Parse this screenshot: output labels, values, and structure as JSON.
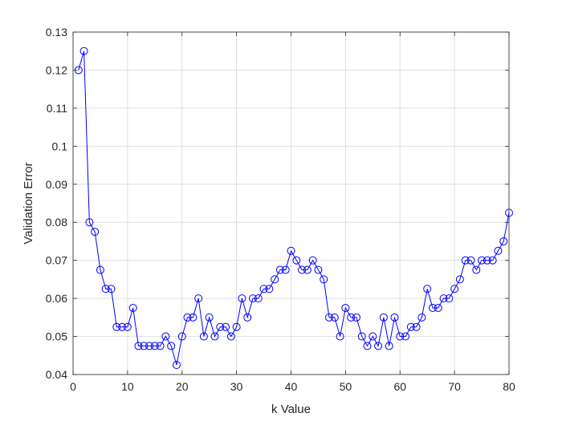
{
  "chart_data": {
    "type": "line",
    "xlabel": "k Value",
    "ylabel": "Validation Error",
    "xlim": [
      0,
      80
    ],
    "ylim": [
      0.04,
      0.13
    ],
    "xticks": [
      0,
      10,
      20,
      30,
      40,
      50,
      60,
      70,
      80
    ],
    "yticks": [
      0.04,
      0.05,
      0.06,
      0.07,
      0.08,
      0.09,
      0.1,
      0.11,
      0.12,
      0.13
    ],
    "xtick_labels": [
      "0",
      "10",
      "20",
      "30",
      "40",
      "50",
      "60",
      "70",
      "80"
    ],
    "ytick_labels": [
      "0.04",
      "0.05",
      "0.06",
      "0.07",
      "0.08",
      "0.09",
      "0.1",
      "0.11",
      "0.12",
      "0.13"
    ],
    "grid": true,
    "series": [
      {
        "color": "#0000ff",
        "marker": "circle",
        "x": [
          1,
          2,
          3,
          4,
          5,
          6,
          7,
          8,
          9,
          10,
          11,
          12,
          13,
          14,
          15,
          16,
          17,
          18,
          19,
          20,
          21,
          22,
          23,
          24,
          25,
          26,
          27,
          28,
          29,
          30,
          31,
          32,
          33,
          34,
          35,
          36,
          37,
          38,
          39,
          40,
          41,
          42,
          43,
          44,
          45,
          46,
          47,
          48,
          49,
          50,
          51,
          52,
          53,
          54,
          55,
          56,
          57,
          58,
          59,
          60,
          61,
          62,
          63,
          64,
          65,
          66,
          67,
          68,
          69,
          70,
          71,
          72,
          73,
          74,
          75,
          76,
          77,
          78,
          79,
          80
        ],
        "y": [
          0.12,
          0.125,
          0.08,
          0.0775,
          0.0675,
          0.0625,
          0.0625,
          0.0525,
          0.0525,
          0.0525,
          0.0575,
          0.0475,
          0.0475,
          0.0475,
          0.0475,
          0.0475,
          0.05,
          0.0475,
          0.0425,
          0.05,
          0.055,
          0.055,
          0.06,
          0.05,
          0.055,
          0.05,
          0.0525,
          0.0525,
          0.05,
          0.0525,
          0.06,
          0.055,
          0.06,
          0.06,
          0.0625,
          0.0625,
          0.065,
          0.0675,
          0.0675,
          0.0725,
          0.07,
          0.0675,
          0.0675,
          0.07,
          0.0675,
          0.065,
          0.055,
          0.055,
          0.05,
          0.0575,
          0.055,
          0.055,
          0.05,
          0.0475,
          0.05,
          0.0475,
          0.055,
          0.0475,
          0.055,
          0.05,
          0.05,
          0.0525,
          0.0525,
          0.055,
          0.0625,
          0.0575,
          0.0575,
          0.06,
          0.06,
          0.0625,
          0.065,
          0.07,
          0.07,
          0.0675,
          0.07,
          0.07,
          0.07,
          0.0725,
          0.075,
          0.0825
        ]
      }
    ]
  }
}
